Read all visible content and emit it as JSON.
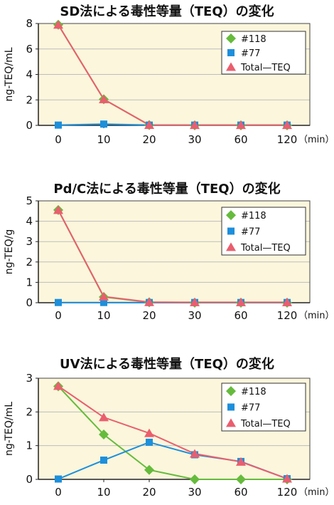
{
  "colors": {
    "plot_bg": "#fbf6dc",
    "axis": "#444444",
    "grid": "#bdbdbd",
    "series_118": "#66bb3c",
    "series_77": "#1d8fdb",
    "series_total": "#ea5e6e"
  },
  "chart_data": [
    {
      "type": "line",
      "title": "SD法による毒性等量（TEQ）の変化",
      "ylabel": "ng-TEQ/mL",
      "x_unit": "（min）",
      "categories": [
        "0",
        "10",
        "20",
        "30",
        "60",
        "120"
      ],
      "ylim": [
        0,
        8
      ],
      "yticks": [
        0,
        2,
        4,
        6,
        8
      ],
      "grid": true,
      "legend_position": "top-right",
      "series": [
        {
          "name": "#118",
          "marker": "diamond",
          "color_key": "series_118",
          "values": [
            7.9,
            2.05,
            0.02,
            0,
            0,
            0
          ]
        },
        {
          "name": "#77",
          "marker": "square",
          "color_key": "series_77",
          "values": [
            0.02,
            0.1,
            0.02,
            0.02,
            0.02,
            0.02
          ]
        },
        {
          "name": "Total—TEQ",
          "marker": "triangle",
          "color_key": "series_total",
          "values": [
            7.9,
            2.05,
            0.03,
            0.02,
            0.02,
            0.02
          ]
        }
      ]
    },
    {
      "type": "line",
      "title": "Pd/C法による毒性等量（TEQ）の変化",
      "ylabel": "ng-TEQ/g",
      "x_unit": "（min）",
      "categories": [
        "0",
        "10",
        "20",
        "30",
        "60",
        "120"
      ],
      "ylim": [
        0,
        5
      ],
      "yticks": [
        0,
        1,
        2,
        3,
        4,
        5
      ],
      "grid": true,
      "legend_position": "top-right",
      "series": [
        {
          "name": "#118",
          "marker": "diamond",
          "color_key": "series_118",
          "values": [
            4.55,
            0.28,
            0.02,
            0,
            0,
            0
          ]
        },
        {
          "name": "#77",
          "marker": "square",
          "color_key": "series_77",
          "values": [
            0.01,
            0.01,
            0.01,
            0.01,
            0.01,
            0.01
          ]
        },
        {
          "name": "Total—TEQ",
          "marker": "triangle",
          "color_key": "series_total",
          "values": [
            4.55,
            0.3,
            0.03,
            0.02,
            0.02,
            0.02
          ]
        }
      ]
    },
    {
      "type": "line",
      "title": "UV法による毒性等量（TEQ）の変化",
      "ylabel": "ng-TEQ/mL",
      "x_unit": "（min）",
      "categories": [
        "0",
        "10",
        "20",
        "30",
        "60",
        "120"
      ],
      "ylim": [
        0,
        3
      ],
      "yticks": [
        0,
        1,
        2,
        3
      ],
      "grid": true,
      "legend_position": "top-right",
      "series": [
        {
          "name": "#118",
          "marker": "diamond",
          "color_key": "series_118",
          "values": [
            2.76,
            1.33,
            0.28,
            0,
            0,
            0
          ]
        },
        {
          "name": "#77",
          "marker": "square",
          "color_key": "series_77",
          "values": [
            0.01,
            0.57,
            1.1,
            0.73,
            0.53,
            0.02
          ]
        },
        {
          "name": "Total—TEQ",
          "marker": "triangle",
          "color_key": "series_total",
          "values": [
            2.77,
            1.84,
            1.37,
            0.76,
            0.52,
            0.02
          ]
        }
      ]
    }
  ]
}
